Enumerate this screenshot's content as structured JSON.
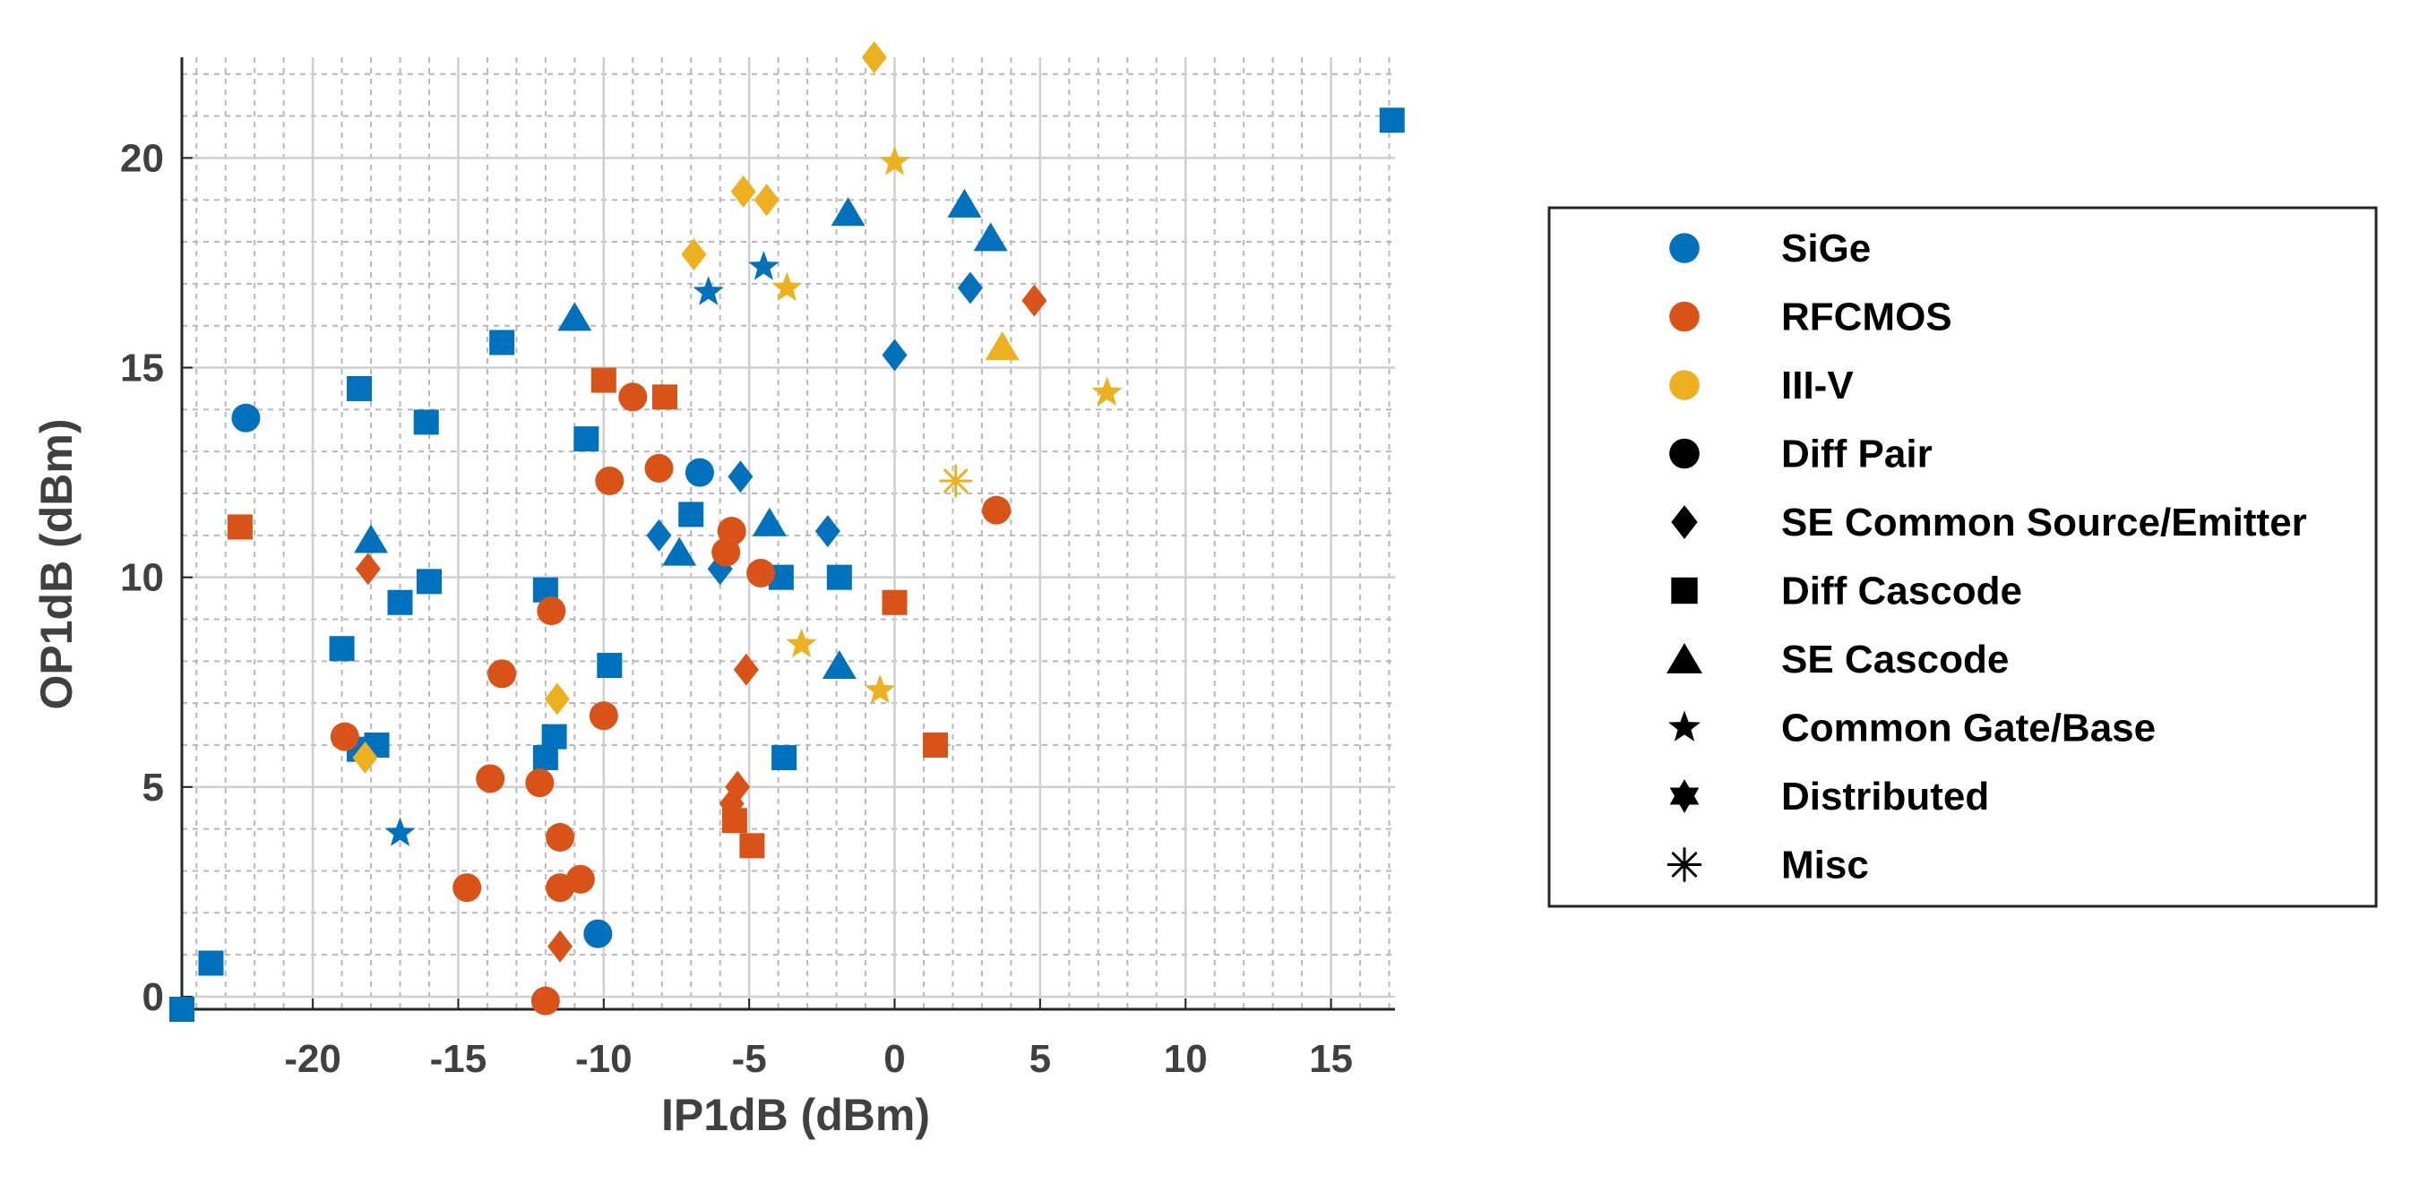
{
  "chart_data": {
    "type": "scatter",
    "xlabel": "IP1dB (dBm)",
    "ylabel": "OP1dB (dBm)",
    "xlim": [
      -24.5,
      17.2
    ],
    "ylim": [
      -0.3,
      22.4
    ],
    "xticks": [
      -20,
      -15,
      -10,
      -5,
      0,
      5,
      10,
      15
    ],
    "yticks": [
      0,
      5,
      10,
      15,
      20
    ],
    "grid": true,
    "minor_grid": true,
    "legend_position": "right",
    "colors": {
      "SiGe": "#0072BD",
      "RFCMOS": "#D95319",
      "III-V": "#EDB120"
    },
    "legend": [
      {
        "label": "SiGe",
        "marker": "circle",
        "color": "#0072BD"
      },
      {
        "label": "RFCMOS",
        "marker": "circle",
        "color": "#D95319"
      },
      {
        "label": "III-V",
        "marker": "circle",
        "color": "#EDB120"
      },
      {
        "label": "Diff Pair",
        "marker": "circle",
        "color": "#000000"
      },
      {
        "label": "SE Common Source/Emitter",
        "marker": "diamond",
        "color": "#000000"
      },
      {
        "label": "Diff Cascode",
        "marker": "square",
        "color": "#000000"
      },
      {
        "label": "SE Cascode",
        "marker": "triangle",
        "color": "#000000"
      },
      {
        "label": "Common Gate/Base",
        "marker": "pentagram",
        "color": "#000000"
      },
      {
        "label": "Distributed",
        "marker": "hexagram",
        "color": "#000000"
      },
      {
        "label": "Misc",
        "marker": "asterisk",
        "color": "#000000"
      }
    ],
    "series": [
      {
        "name": "SiGe - Diff Pair",
        "technology": "SiGe",
        "marker": "circle",
        "points": [
          [
            -22.3,
            13.8
          ],
          [
            -6.7,
            12.5
          ],
          [
            -10.2,
            1.5
          ]
        ]
      },
      {
        "name": "SiGe - SE Common Source/Emitter",
        "technology": "SiGe",
        "marker": "diamond",
        "points": [
          [
            -8.1,
            11.0
          ],
          [
            -6.0,
            10.2
          ],
          [
            -5.3,
            12.4
          ],
          [
            -2.3,
            11.1
          ],
          [
            2.6,
            16.9
          ],
          [
            0.0,
            15.3
          ]
        ]
      },
      {
        "name": "SiGe - Diff Cascode",
        "technology": "SiGe",
        "marker": "square",
        "points": [
          [
            -24.5,
            -0.3
          ],
          [
            -23.5,
            0.8
          ],
          [
            -19.0,
            8.3
          ],
          [
            -18.4,
            14.5
          ],
          [
            -18.4,
            5.9
          ],
          [
            -17.8,
            6.0
          ],
          [
            -17.0,
            9.4
          ],
          [
            -16.1,
            13.7
          ],
          [
            -16.0,
            9.9
          ],
          [
            -13.5,
            15.6
          ],
          [
            -12.0,
            9.7
          ],
          [
            -12.0,
            5.7
          ],
          [
            -11.7,
            6.2
          ],
          [
            -10.6,
            13.3
          ],
          [
            -9.8,
            7.9
          ],
          [
            -7.0,
            11.5
          ],
          [
            -3.9,
            10.0
          ],
          [
            -3.8,
            5.7
          ],
          [
            -1.9,
            10.0
          ],
          [
            17.1,
            20.9
          ]
        ]
      },
      {
        "name": "SiGe - SE Cascode",
        "technology": "SiGe",
        "marker": "triangle",
        "points": [
          [
            -18.0,
            10.9
          ],
          [
            -11.0,
            16.2
          ],
          [
            -7.4,
            10.6
          ],
          [
            -4.3,
            11.3
          ],
          [
            -1.9,
            7.9
          ],
          [
            -1.6,
            18.7
          ],
          [
            2.4,
            18.9
          ],
          [
            3.3,
            18.1
          ]
        ]
      },
      {
        "name": "SiGe - Common Gate/Base",
        "technology": "SiGe",
        "marker": "pentagram",
        "points": [
          [
            -17.0,
            3.9
          ],
          [
            -6.4,
            16.8
          ],
          [
            -4.5,
            17.4
          ]
        ]
      },
      {
        "name": "RFCMOS - Diff Pair",
        "technology": "RFCMOS",
        "marker": "circle",
        "points": [
          [
            -18.9,
            6.2
          ],
          [
            -14.7,
            2.6
          ],
          [
            -13.9,
            5.2
          ],
          [
            -13.5,
            7.7
          ],
          [
            -12.2,
            5.1
          ],
          [
            -12.0,
            -0.1
          ],
          [
            -11.8,
            9.2
          ],
          [
            -11.5,
            3.8
          ],
          [
            -11.5,
            2.6
          ],
          [
            -10.8,
            2.8
          ],
          [
            -10.0,
            6.7
          ],
          [
            -9.8,
            12.3
          ],
          [
            -9.0,
            14.3
          ],
          [
            -8.1,
            12.6
          ],
          [
            -5.8,
            10.6
          ],
          [
            -5.6,
            11.1
          ],
          [
            -4.6,
            10.1
          ],
          [
            3.5,
            11.6
          ]
        ]
      },
      {
        "name": "RFCMOS - SE Common Source/Emitter",
        "technology": "RFCMOS",
        "marker": "diamond",
        "points": [
          [
            -18.1,
            10.2
          ],
          [
            -11.5,
            1.2
          ],
          [
            -5.6,
            4.6
          ],
          [
            -5.4,
            5.0
          ],
          [
            -5.1,
            7.8
          ],
          [
            4.8,
            16.6
          ]
        ]
      },
      {
        "name": "RFCMOS - Diff Cascode",
        "technology": "RFCMOS",
        "marker": "square",
        "points": [
          [
            -22.5,
            11.2
          ],
          [
            -10.0,
            14.7
          ],
          [
            -7.9,
            14.3
          ],
          [
            -5.5,
            4.2
          ],
          [
            -4.9,
            3.6
          ],
          [
            0.0,
            9.4
          ],
          [
            1.4,
            6.0
          ]
        ]
      },
      {
        "name": "III-V - SE Common Source/Emitter",
        "technology": "III-V",
        "marker": "diamond",
        "points": [
          [
            -18.2,
            5.7
          ],
          [
            -11.6,
            7.1
          ],
          [
            -6.9,
            17.7
          ],
          [
            -5.2,
            19.2
          ],
          [
            -4.4,
            19.0
          ],
          [
            -0.7,
            22.4
          ]
        ]
      },
      {
        "name": "III-V - SE Cascode",
        "technology": "III-V",
        "marker": "triangle",
        "points": [
          [
            3.7,
            15.5
          ]
        ]
      },
      {
        "name": "III-V - Common Gate/Base",
        "technology": "III-V",
        "marker": "pentagram",
        "points": [
          [
            -3.7,
            16.9
          ],
          [
            -3.2,
            8.4
          ],
          [
            -0.5,
            7.3
          ],
          [
            0.0,
            19.9
          ],
          [
            7.3,
            14.4
          ]
        ]
      },
      {
        "name": "III-V - Misc",
        "technology": "III-V",
        "marker": "asterisk",
        "points": [
          [
            2.1,
            12.3
          ]
        ]
      }
    ]
  }
}
